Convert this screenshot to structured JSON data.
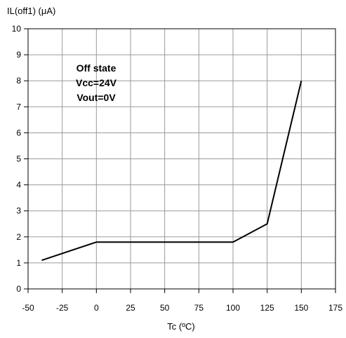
{
  "chart_data": {
    "type": "line",
    "ylabel": "IL(off1) (μA)",
    "xlabel": "Tc (ºC)",
    "xlim": [
      -50,
      175
    ],
    "ylim": [
      0,
      10
    ],
    "x_ticks": [
      -50,
      -25,
      0,
      25,
      50,
      75,
      100,
      125,
      150,
      175
    ],
    "y_ticks": [
      0,
      1,
      2,
      3,
      4,
      5,
      6,
      7,
      8,
      9,
      10
    ],
    "grid": true,
    "series": [
      {
        "color": "#000000",
        "points": [
          {
            "x": -40,
            "y": 1.1
          },
          {
            "x": 0,
            "y": 1.8
          },
          {
            "x": 100,
            "y": 1.8
          },
          {
            "x": 125,
            "y": 2.5
          },
          {
            "x": 150,
            "y": 8.0
          }
        ]
      }
    ],
    "annotation": [
      "Off state",
      "Vcc=24V",
      "Vout=0V"
    ]
  }
}
